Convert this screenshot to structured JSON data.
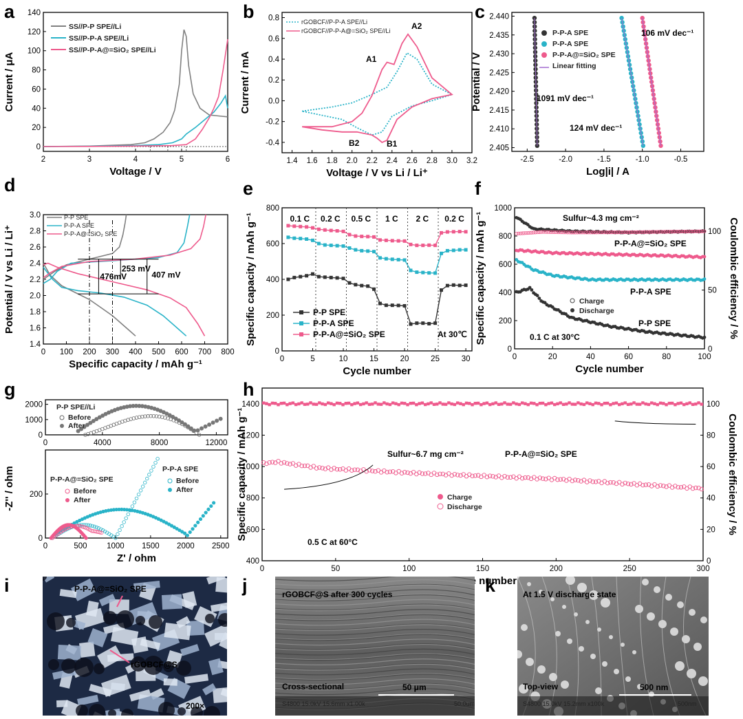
{
  "colors": {
    "gray": "#808080",
    "teal": "#29b3c8",
    "pink": "#ee5a8c",
    "dark": "#333333",
    "purple": "#a46ed0"
  },
  "panel_labels": [
    "a",
    "b",
    "c",
    "d",
    "e",
    "f",
    "g",
    "h",
    "i",
    "j",
    "k"
  ],
  "chart_data": [
    {
      "id": "a",
      "type": "line",
      "xlabel": "Voltage / V",
      "ylabel": "Current / μA",
      "xlim": [
        2,
        6
      ],
      "ylim": [
        -5,
        140
      ],
      "xticks": [
        2,
        3,
        4,
        5,
        6
      ],
      "yticks": [
        0,
        20,
        40,
        60,
        80,
        100,
        120,
        140
      ],
      "vlines": [
        4.32,
        4.7,
        5.1
      ],
      "series": [
        {
          "name": "SS//P-P SPE//Li",
          "color": "gray",
          "x": [
            2,
            3,
            3.9,
            4.2,
            4.4,
            4.6,
            4.75,
            4.85,
            4.95,
            5.0,
            5.05,
            5.1,
            5.15,
            5.25,
            5.4,
            5.6,
            5.8,
            6.0
          ],
          "y": [
            0,
            0.5,
            2,
            4,
            8,
            15,
            25,
            38,
            65,
            100,
            122,
            115,
            85,
            55,
            40,
            33,
            32,
            31
          ]
        },
        {
          "name": "SS//P-P-A SPE//Li",
          "color": "teal",
          "x": [
            2,
            3,
            4,
            4.5,
            4.8,
            5.0,
            5.1,
            5.3,
            5.5,
            5.7,
            5.85,
            5.95,
            6.0
          ],
          "y": [
            0,
            0.3,
            1,
            2,
            4,
            8,
            13,
            20,
            28,
            36,
            45,
            53,
            40
          ]
        },
        {
          "name": "SS//P-P-A@=SiO2 SPE//Li",
          "color": "pink",
          "x": [
            2,
            3,
            4,
            4.8,
            5.1,
            5.3,
            5.45,
            5.6,
            5.7,
            5.8,
            5.9,
            6.0
          ],
          "y": [
            0,
            0.2,
            0.5,
            1,
            2,
            8,
            18,
            30,
            40,
            52,
            80,
            112
          ]
        }
      ]
    },
    {
      "id": "b",
      "type": "line",
      "xlabel": "Voltage / V vs Li / Li⁺",
      "ylabel": "Current / mA",
      "xlim": [
        1.3,
        3.2
      ],
      "ylim": [
        -0.5,
        0.85
      ],
      "xticks": [
        1.4,
        1.6,
        1.8,
        2.0,
        2.2,
        2.4,
        2.6,
        2.8,
        3.0,
        3.2
      ],
      "yticks": [
        -0.4,
        -0.2,
        0.0,
        0.2,
        0.4,
        0.6,
        0.8
      ],
      "annotations": [
        "A2",
        "A1",
        "B2",
        "B1"
      ],
      "series": [
        {
          "name": "rGOBCF//P-P-A SPE//Li",
          "color": "teal",
          "dashed": true,
          "x": [
            1.5,
            1.8,
            2.0,
            2.2,
            2.35,
            2.45,
            2.55,
            2.65,
            2.8,
            3.0,
            2.8,
            2.6,
            2.4,
            2.3,
            2.2,
            2.05,
            1.9,
            1.7,
            1.5
          ],
          "y": [
            -0.1,
            -0.06,
            -0.02,
            0.06,
            0.13,
            0.28,
            0.46,
            0.4,
            0.16,
            0.06,
            0.0,
            -0.05,
            -0.15,
            -0.3,
            -0.33,
            -0.26,
            -0.18,
            -0.14,
            -0.1
          ]
        },
        {
          "name": "rGOBCF//P-P-A@=SiO2 SPE//Li",
          "color": "pink",
          "x": [
            1.5,
            1.8,
            2.0,
            2.1,
            2.2,
            2.3,
            2.35,
            2.42,
            2.5,
            2.56,
            2.65,
            2.8,
            3.0,
            2.8,
            2.6,
            2.45,
            2.35,
            2.3,
            2.25,
            2.2,
            2.05,
            1.9,
            1.7,
            1.5
          ],
          "y": [
            -0.25,
            -0.25,
            -0.2,
            -0.12,
            0.05,
            0.3,
            0.37,
            0.35,
            0.55,
            0.64,
            0.52,
            0.22,
            0.06,
            0.02,
            -0.06,
            -0.18,
            -0.38,
            -0.4,
            -0.36,
            -0.33,
            -0.3,
            -0.3,
            -0.28,
            -0.25
          ]
        }
      ]
    },
    {
      "id": "c",
      "type": "scatter",
      "xlabel": "Log|i| / A",
      "ylabel": "Potential / V",
      "xlim": [
        -2.7,
        -0.2
      ],
      "ylim": [
        2.404,
        2.441
      ],
      "xticks": [
        -2.5,
        -2.0,
        -1.5,
        -1.0,
        -0.5
      ],
      "yticks": [
        2.405,
        2.41,
        2.415,
        2.42,
        2.425,
        2.43,
        2.435,
        2.44
      ],
      "legend": [
        "P-P-A SPE",
        "P-P-A SPE",
        "P-P-A@=SiO2 SPE",
        "Linear fitting"
      ],
      "annotations": [
        "106 mV dec⁻¹",
        "1091 mV dec⁻¹",
        "124 mV dec⁻¹"
      ],
      "series": [
        {
          "name": "P-P-A SPE",
          "color": "dark",
          "x0": -2.405,
          "x1": -2.37
        },
        {
          "name": "P-P-A SPE",
          "color": "teal",
          "x0": -1.27,
          "x1": -0.99
        },
        {
          "name": "P-P-A@=SiO2 SPE",
          "color": "pink",
          "x0": -1.0,
          "x1": -0.76
        }
      ]
    },
    {
      "id": "d",
      "type": "line",
      "xlabel": "Specific capacity / mAh g⁻¹",
      "ylabel": "Potential / V vs Li / Li⁺",
      "xlim": [
        0,
        800
      ],
      "ylim": [
        1.4,
        3.0
      ],
      "xticks": [
        0,
        100,
        200,
        300,
        400,
        500,
        600,
        700,
        800
      ],
      "yticks": [
        1.4,
        1.6,
        1.8,
        2.0,
        2.2,
        2.4,
        2.6,
        2.8,
        3.0
      ],
      "legend": [
        "P-P SPE",
        "P-P-A SPE",
        "P-P-A@=SiO2 SPE"
      ],
      "annotations": [
        "476mV",
        "253 mV",
        "407 mV"
      ],
      "series": [
        {
          "name": "P-P SPE discharge",
          "color": "gray",
          "x": [
            0,
            30,
            80,
            150,
            200,
            250,
            300,
            340,
            380,
            400
          ],
          "y": [
            2.4,
            2.25,
            2.12,
            2.02,
            1.95,
            1.85,
            1.75,
            1.65,
            1.55,
            1.5
          ]
        },
        {
          "name": "P-P SPE charge",
          "color": "gray",
          "x": [
            0,
            50,
            100,
            200,
            300,
            330,
            345,
            355,
            360
          ],
          "y": [
            2.2,
            2.3,
            2.38,
            2.45,
            2.52,
            2.6,
            2.75,
            2.9,
            3.0
          ]
        },
        {
          "name": "P-P-A SPE discharge",
          "color": "teal",
          "x": [
            0,
            40,
            80,
            150,
            250,
            350,
            450,
            520,
            580,
            620
          ],
          "y": [
            2.35,
            2.2,
            2.1,
            2.06,
            2.03,
            1.98,
            1.88,
            1.75,
            1.6,
            1.5
          ]
        },
        {
          "name": "P-P-A SPE charge",
          "color": "teal",
          "x": [
            0,
            30,
            60,
            120,
            300,
            500,
            580,
            610,
            625,
            635
          ],
          "y": [
            2.15,
            2.2,
            2.3,
            2.4,
            2.43,
            2.47,
            2.53,
            2.65,
            2.85,
            3.0
          ]
        },
        {
          "name": "P-P-A@=SiO2 SPE discharge",
          "color": "pink",
          "x": [
            0,
            20,
            60,
            150,
            300,
            450,
            550,
            620,
            670,
            700
          ],
          "y": [
            2.38,
            2.4,
            2.35,
            2.27,
            2.17,
            2.07,
            1.97,
            1.85,
            1.65,
            1.5
          ]
        },
        {
          "name": "P-P-A@=SiO2 SPE charge",
          "color": "pink",
          "x": [
            0,
            30,
            80,
            200,
            400,
            550,
            640,
            680,
            695,
            705
          ],
          "y": [
            2.22,
            2.28,
            2.36,
            2.42,
            2.45,
            2.5,
            2.58,
            2.7,
            2.85,
            3.0
          ]
        }
      ]
    },
    {
      "id": "e",
      "type": "scatter",
      "xlabel": "Cycle number",
      "ylabel": "Specific capacity / mAh g⁻¹",
      "xlim": [
        0,
        31
      ],
      "ylim": [
        0,
        800
      ],
      "xticks": [
        0,
        5,
        10,
        15,
        20,
        25,
        30
      ],
      "yticks": [
        0,
        200,
        400,
        600,
        800
      ],
      "rate_labels": [
        "0.1 C",
        "0.2 C",
        "0.5 C",
        "1 C",
        "2 C",
        "0.2 C"
      ],
      "rate_dividers": [
        5,
        10,
        15,
        20,
        25
      ],
      "note": "At 30℃",
      "series": [
        {
          "name": "P-P SPE",
          "color": "dark",
          "values": [
            400,
            410,
            415,
            420,
            430,
            415,
            412,
            410,
            408,
            405,
            380,
            370,
            365,
            362,
            345,
            265,
            255,
            255,
            254,
            252,
            150,
            155,
            155,
            152,
            155,
            340,
            365,
            368,
            366,
            367
          ]
        },
        {
          "name": "P-P-A SPE",
          "color": "teal",
          "values": [
            635,
            630,
            628,
            625,
            618,
            600,
            592,
            590,
            588,
            586,
            575,
            565,
            560,
            558,
            555,
            520,
            515,
            512,
            510,
            508,
            450,
            440,
            438,
            436,
            435,
            545,
            560,
            562,
            565,
            565
          ]
        },
        {
          "name": "P-P-A@=SiO2 SPE",
          "color": "pink",
          "values": [
            700,
            697,
            695,
            693,
            688,
            680,
            676,
            673,
            671,
            668,
            650,
            642,
            640,
            639,
            637,
            620,
            618,
            616,
            615,
            614,
            595,
            590,
            590,
            591,
            590,
            660,
            665,
            666,
            667,
            666
          ]
        }
      ]
    },
    {
      "id": "f",
      "type": "scatter",
      "xlabel": "Cycle number",
      "ylabel": "Specific capacity / mAh g⁻¹",
      "ylabel_right": "Coulombic efficiency / %",
      "xlim": [
        0,
        100
      ],
      "ylim": [
        0,
        1000
      ],
      "ylim_right": [
        0,
        120
      ],
      "xticks": [
        0,
        20,
        40,
        60,
        80,
        100
      ],
      "yticks": [
        0,
        200,
        400,
        600,
        800,
        1000
      ],
      "yticks_right": [
        0,
        50,
        100
      ],
      "legend": [
        "Charge",
        "Discharge"
      ],
      "annotations": [
        "Sulfur~4.3 mg cm⁻²",
        "P-P-A@=SiO2 SPE",
        "P-P-A SPE",
        "P-P SPE",
        "0.1 C at 30°C"
      ],
      "series": [
        {
          "name": "P-P SPE",
          "color": "dark",
          "anchor_x": [
            1,
            8,
            15,
            30,
            50,
            70,
            100
          ],
          "anchor_y": [
            400,
            430,
            330,
            220,
            160,
            120,
            80
          ]
        },
        {
          "name": "P-P-A SPE",
          "color": "teal",
          "anchor_x": [
            1,
            10,
            20,
            40,
            60,
            100
          ],
          "anchor_y": [
            630,
            560,
            520,
            490,
            490,
            490
          ]
        },
        {
          "name": "P-P-A@=SiO2 SPE",
          "color": "pink",
          "anchor_x": [
            1,
            20,
            50,
            80,
            100
          ],
          "anchor_y": [
            700,
            680,
            670,
            660,
            650
          ]
        },
        {
          "name": "Coulombic efficiency",
          "color": "dark",
          "anchor_x": [
            1,
            10,
            30,
            60,
            100
          ],
          "anchor_y": [
            112,
            102,
            100,
            99,
            100
          ]
        }
      ]
    },
    {
      "id": "g",
      "type": "scatter",
      "xlabel": "Z' / ohm",
      "ylabel": "-Z'' / ohm",
      "top": {
        "xlim": [
          0,
          12800
        ],
        "ylim": [
          0,
          2300
        ],
        "xticks": [
          0,
          4000,
          8000,
          12000
        ],
        "yticks": [
          0,
          1000,
          2000
        ],
        "title": "P-P SPE//Li",
        "legend": [
          "Before",
          "After"
        ]
      },
      "bottom": {
        "xlim": [
          0,
          2600
        ],
        "ylim": [
          0,
          400
        ],
        "xticks": [
          0,
          500,
          1000,
          1500,
          2000,
          2500
        ],
        "yticks": [
          0,
          200
        ],
        "legend_left": {
          "title": "P-P-A@=SiO2 SPE",
          "items": [
            "Before",
            "After"
          ]
        },
        "legend_right": {
          "title": "P-P-A SPE",
          "items": [
            "Before",
            "After"
          ]
        }
      }
    },
    {
      "id": "h",
      "type": "scatter",
      "xlabel": "Cycle number",
      "ylabel": "Specific capacity / mAh g⁻¹",
      "ylabel_right": "Coulombic efficiency / %",
      "xlim": [
        0,
        300
      ],
      "ylim": [
        400,
        1500
      ],
      "ylim_right": [
        0,
        110
      ],
      "xticks": [
        0,
        50,
        100,
        150,
        200,
        250,
        300
      ],
      "yticks": [
        400,
        600,
        800,
        1000,
        1200,
        1400
      ],
      "yticks_right": [
        0,
        20,
        40,
        60,
        80,
        100
      ],
      "legend": [
        "Charge",
        "Discharge"
      ],
      "annotations": [
        "Sulfur~6.7 mg cm⁻²",
        "P-P-A@=SiO2 SPE",
        "0.5 C at 60°C"
      ],
      "series": [
        {
          "name": "Coulombic efficiency",
          "color": "pink",
          "value": 1400
        },
        {
          "name": "Discharge capacity",
          "color": "pink",
          "anchor_x": [
            1,
            10,
            40,
            100,
            200,
            300
          ],
          "anchor_y": [
            1020,
            1030,
            990,
            960,
            920,
            860
          ]
        }
      ]
    }
  ],
  "images": {
    "i": {
      "label_top": "P-P-A@=SiO2 SPE",
      "label_bottom": "rGOBCF@S",
      "mag": "200×"
    },
    "j": {
      "title": "rGOBCF@S after 300 cycles",
      "view": "Cross-sectional",
      "scale": "50 μm",
      "meta": "S4800 15.0kV 15.6mm x1.00k",
      "meta_scale": "50.0um"
    },
    "k": {
      "title": "At 1.5 V discharge state",
      "view": "Top-view",
      "scale": "500 nm",
      "meta": "S4800 15.0kV 15.2mm x100k",
      "meta_scale": "500nm"
    }
  }
}
